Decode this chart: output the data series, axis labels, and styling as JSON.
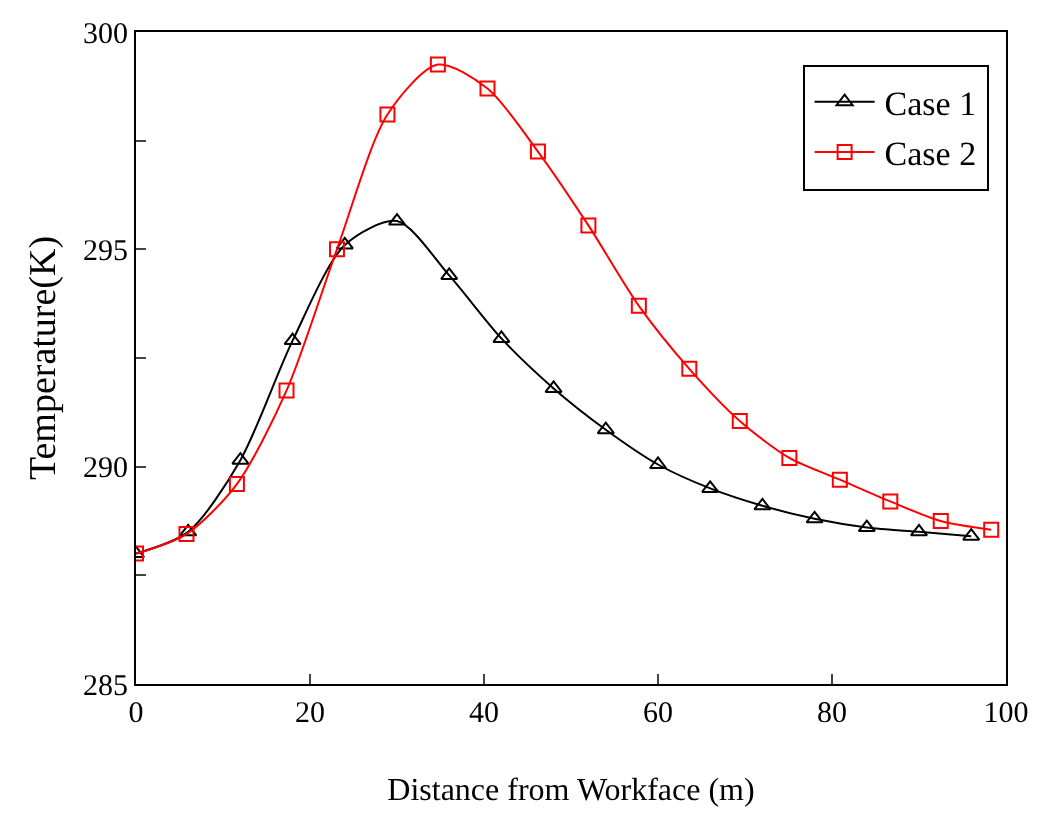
{
  "chart_data": {
    "type": "line",
    "xlabel": "Distance from Workface (m)",
    "ylabel": "Temperature(K)",
    "xlim": [
      0,
      100
    ],
    "xticks": [
      0,
      20,
      40,
      60,
      80,
      100
    ],
    "ylim": [
      285,
      300
    ],
    "yticks": [
      285,
      {
        "value": 287.5,
        "label": null
      },
      290,
      {
        "value": 292.5,
        "label": null
      },
      295,
      {
        "value": 297.5,
        "label": null
      },
      300
    ],
    "grid": false,
    "legend": "top right",
    "line_style": "solid",
    "series": [
      {
        "name": "Case 1",
        "color": "#000000",
        "marker": "triangle",
        "x": [
          0,
          6,
          12,
          18,
          24,
          30,
          36,
          42,
          48,
          54,
          60,
          66,
          72,
          78,
          84,
          90,
          96
        ],
        "values": [
          288.0,
          288.5,
          290.15,
          292.9,
          295.1,
          295.65,
          294.4,
          292.95,
          291.8,
          290.85,
          290.05,
          289.5,
          289.1,
          288.8,
          288.6,
          288.5,
          288.4
        ]
      },
      {
        "name": "Case 2",
        "color": "#ff0000",
        "marker": "square",
        "x": [
          0,
          5.8,
          11.6,
          17.3,
          23.1,
          28.9,
          34.7,
          40.4,
          46.2,
          52,
          57.8,
          63.6,
          69.4,
          75.1,
          80.9,
          86.7,
          92.5,
          98.3
        ],
        "values": [
          288.0,
          288.45,
          289.6,
          291.75,
          295.0,
          298.1,
          299.25,
          298.7,
          297.25,
          295.55,
          293.7,
          292.25,
          291.05,
          290.2,
          289.7,
          289.2,
          288.75,
          288.55
        ]
      }
    ]
  }
}
